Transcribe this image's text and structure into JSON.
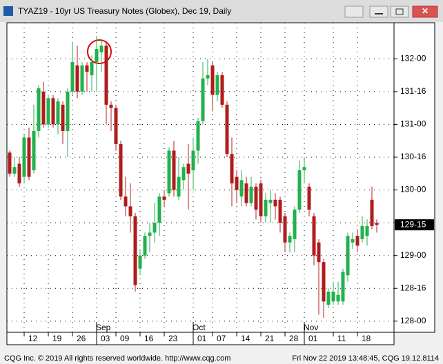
{
  "chart_data": {
    "type": "candlestick",
    "title": "TYAZ19 - 10yr US Treasury Notes (Globex), Dec 19, Daily",
    "categories": [
      null,
      null,
      null,
      "12",
      null,
      null,
      null,
      null,
      "19",
      null,
      null,
      null,
      null,
      "26",
      null,
      null,
      null,
      null,
      "03",
      null,
      null,
      null,
      "09",
      null,
      null,
      null,
      null,
      "16",
      null,
      null,
      null,
      null,
      "23",
      null,
      null,
      null,
      null,
      null,
      "01",
      null,
      null,
      null,
      "07",
      null,
      null,
      null,
      null,
      "14",
      null,
      null,
      null,
      null,
      "21",
      null,
      null,
      null,
      null,
      "28",
      null,
      null,
      null,
      "01",
      null,
      null,
      null,
      null,
      null,
      "11",
      null,
      null,
      null,
      null,
      "18",
      null,
      null,
      null,
      null
    ],
    "category_groups": [
      null,
      null,
      null,
      null,
      null,
      null,
      null,
      null,
      null,
      null,
      null,
      null,
      null,
      null,
      null,
      null,
      null,
      null,
      "Sep",
      null,
      null,
      null,
      null,
      null,
      null,
      null,
      null,
      null,
      null,
      null,
      null,
      null,
      null,
      null,
      null,
      null,
      null,
      null,
      "Oct",
      null,
      null,
      null,
      null,
      null,
      null,
      null,
      null,
      null,
      null,
      null,
      null,
      null,
      null,
      null,
      null,
      null,
      null,
      null,
      null,
      null,
      null,
      "Nov",
      null,
      null,
      null,
      null,
      null,
      null,
      null,
      null,
      null,
      null,
      null,
      null,
      null,
      null,
      null
    ],
    "open": [
      130.57,
      130.25,
      130.4,
      130.2,
      130.8,
      130.3,
      130.9,
      131.5,
      131.0,
      131.4,
      131.0,
      131.3,
      130.9,
      131.5,
      131.9,
      131.5,
      131.9,
      131.75,
      131.95,
      132.1,
      132.2,
      131.3,
      131.25,
      130.7,
      129.9,
      129.75,
      129.6,
      128.8,
      129.0,
      129.3,
      129.35,
      129.5,
      129.9,
      129.95,
      130.6,
      129.9,
      130.15,
      130.4,
      130.3,
      130.6,
      131.05,
      131.7,
      131.9,
      131.45,
      131.75,
      131.3,
      130.55,
      130.2,
      129.9,
      130.1,
      129.8,
      130.05,
      130.1,
      129.6,
      129.8,
      129.85,
      129.85,
      129.6,
      129.2,
      129.25,
      129.7,
      130.3,
      130.05,
      129.6,
      129.2,
      128.9,
      128.25,
      128.3,
      128.3,
      128.3,
      128.7,
      129.2,
      129.3,
      129.25,
      129.3,
      129.85,
      129.5
    ],
    "high": [
      130.6,
      130.5,
      130.5,
      130.85,
      130.95,
      131.3,
      131.6,
      131.65,
      131.45,
      131.45,
      131.4,
      131.35,
      131.55,
      132.25,
      132.2,
      131.95,
      131.95,
      132.05,
      132.35,
      132.3,
      132.25,
      131.35,
      131.3,
      130.75,
      130.2,
      130.1,
      129.65,
      129.1,
      129.35,
      129.5,
      129.8,
      129.95,
      130.0,
      130.65,
      130.75,
      130.5,
      130.4,
      130.7,
      130.8,
      131.1,
      131.95,
      132.0,
      131.95,
      131.8,
      131.8,
      131.35,
      130.8,
      130.3,
      130.3,
      130.2,
      130.2,
      130.1,
      130.15,
      129.95,
      130.0,
      129.95,
      129.9,
      129.65,
      129.35,
      129.75,
      130.45,
      130.5,
      130.1,
      129.65,
      129.25,
      128.95,
      128.5,
      128.6,
      128.6,
      128.8,
      129.35,
      129.35,
      129.4,
      129.6,
      129.55,
      130.05,
      129.55
    ],
    "low": [
      130.2,
      130.2,
      130.05,
      130.1,
      130.15,
      130.25,
      130.8,
      130.95,
      130.95,
      130.95,
      130.85,
      130.7,
      130.5,
      131.45,
      131.4,
      131.45,
      131.5,
      131.5,
      131.5,
      131.8,
      131.0,
      130.9,
      130.6,
      129.85,
      129.6,
      129.35,
      128.45,
      128.7,
      128.95,
      129.05,
      129.2,
      129.3,
      129.75,
      129.9,
      129.9,
      129.85,
      130.0,
      129.7,
      130.0,
      130.4,
      131.0,
      131.6,
      131.2,
      131.35,
      131.25,
      130.5,
      129.75,
      129.8,
      129.75,
      129.75,
      129.75,
      129.55,
      129.5,
      129.5,
      129.5,
      129.55,
      129.35,
      129.05,
      129.05,
      129.05,
      129.65,
      130.1,
      129.6,
      128.85,
      128.1,
      128.05,
      128.2,
      128.25,
      128.25,
      128.25,
      128.6,
      129.1,
      129.05,
      129.2,
      129.15,
      129.4,
      129.35
    ],
    "close": [
      130.25,
      130.35,
      130.1,
      130.8,
      130.2,
      130.9,
      131.55,
      131.0,
      131.4,
      131.0,
      131.35,
      130.9,
      131.5,
      131.95,
      131.5,
      131.9,
      131.8,
      131.95,
      132.15,
      132.2,
      131.3,
      131.25,
      130.7,
      129.9,
      129.75,
      129.6,
      128.55,
      129.0,
      129.3,
      129.35,
      129.5,
      129.9,
      129.85,
      130.6,
      130.0,
      130.2,
      130.35,
      130.25,
      130.6,
      131.05,
      131.7,
      131.75,
      131.45,
      131.75,
      131.3,
      130.55,
      130.1,
      130.0,
      130.15,
      129.8,
      130.05,
      129.7,
      129.6,
      129.85,
      129.85,
      129.75,
      129.5,
      129.2,
      129.3,
      129.7,
      130.3,
      130.35,
      129.7,
      129.0,
      128.9,
      128.3,
      128.45,
      128.45,
      128.4,
      128.75,
      129.3,
      129.25,
      129.15,
      129.45,
      129.45,
      129.45,
      129.46875
    ],
    "up_color": "#22b14c",
    "down_color": "#b01c1c",
    "ylim": [
      127.83,
      132.55
    ],
    "yticks": [
      {
        "value": 128,
        "label": "128-00"
      },
      {
        "value": 128.5,
        "label": "128-16"
      },
      {
        "value": 129,
        "label": "129-00"
      },
      {
        "value": 129.5,
        "label": "129-16"
      },
      {
        "value": 130,
        "label": "130-00"
      },
      {
        "value": 130.5,
        "label": "130-16"
      },
      {
        "value": 131,
        "label": "131-00"
      },
      {
        "value": 131.5,
        "label": "131-16"
      },
      {
        "value": 132,
        "label": "132-00"
      }
    ],
    "last_price": {
      "value": 129.46875,
      "label": "129-15"
    },
    "grid": true
  },
  "footer": {
    "left": "CQG Inc. © 2019 All rights reserved worldwide. http://www.cqg.com",
    "right": "Fri Nov 22 2019 13:48:45, CQG 19.12.8114"
  }
}
